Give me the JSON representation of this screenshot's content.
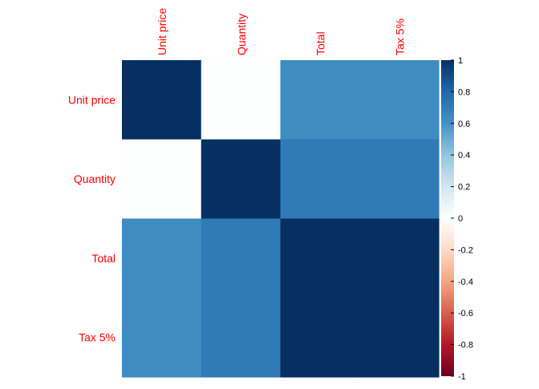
{
  "chart_data": {
    "type": "heatmap",
    "title": "",
    "row_labels": [
      "Unit price",
      "Quantity",
      "Total",
      "Tax 5%"
    ],
    "col_labels": [
      "Unit price",
      "Quantity",
      "Total",
      "Tax 5%"
    ],
    "matrix": [
      [
        1.0,
        0.01,
        0.63,
        0.63
      ],
      [
        0.01,
        1.0,
        0.71,
        0.71
      ],
      [
        0.63,
        0.71,
        1.0,
        1.0
      ],
      [
        0.63,
        0.71,
        1.0,
        1.0
      ]
    ],
    "colorbar": {
      "min": -1,
      "max": 1,
      "tick_labels": [
        "1",
        "0.8",
        "0.6",
        "0.4",
        "0.2",
        "0",
        "-0.2",
        "-0.4",
        "-0.6",
        "-0.8",
        "-1"
      ],
      "tick_values": [
        1,
        0.8,
        0.6,
        0.4,
        0.2,
        0,
        -0.2,
        -0.4,
        -0.6,
        -0.8,
        -1
      ]
    },
    "colors": {
      "label": "#ff0000",
      "tick_text": "#000000",
      "scale": [
        [
          -1.0,
          "#67001f"
        ],
        [
          -0.8,
          "#b2182b"
        ],
        [
          -0.6,
          "#d6604d"
        ],
        [
          -0.4,
          "#f4a582"
        ],
        [
          -0.2,
          "#fddbc7"
        ],
        [
          0.0,
          "#ffffff"
        ],
        [
          0.2,
          "#d1e5f0"
        ],
        [
          0.4,
          "#92c5de"
        ],
        [
          0.6,
          "#4393c3"
        ],
        [
          0.8,
          "#2166ac"
        ],
        [
          1.0,
          "#053061"
        ]
      ]
    },
    "legend_placement": "right",
    "grid": false
  }
}
